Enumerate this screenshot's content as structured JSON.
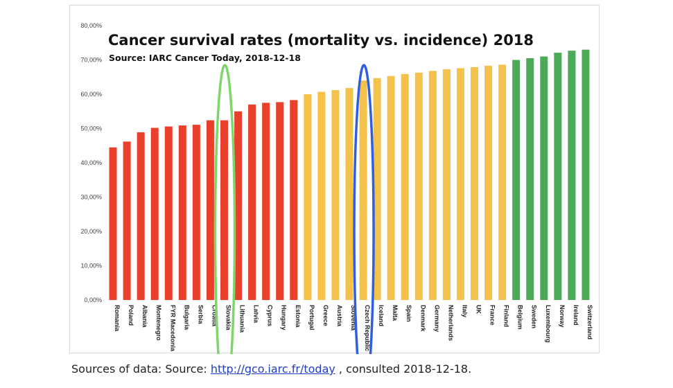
{
  "chart_data": {
    "type": "bar",
    "title": "Cancer survival rates (mortality vs. incidence) 2018",
    "subtitle": "Source: IARC Cancer Today, 2018-12-18",
    "xlabel": "",
    "ylabel": "",
    "ylim": [
      0,
      80
    ],
    "yticks": [
      "0,00%",
      "10,00%",
      "20,00%",
      "30,00%",
      "40,00%",
      "50,00%",
      "60,00%",
      "70,00%",
      "80,00%"
    ],
    "categories": [
      "Romania",
      "Poland",
      "Albania",
      "Montenegro",
      "FYR Macedonia",
      "Bulgaria",
      "Serbia",
      "Croatia",
      "Slovakia",
      "Lithuania",
      "Latvia",
      "Cyprus",
      "Hungary",
      "Estonia",
      "Portugal",
      "Greece",
      "Austria",
      "Slovenia",
      "Czech Republic",
      "Iceland",
      "Malta",
      "Spain",
      "Denmark",
      "Germany",
      "Netherlands",
      "Italy",
      "UK",
      "France",
      "Finland",
      "Belgium",
      "Sweden",
      "Luxembourg",
      "Norway",
      "Ireland",
      "Switzerland"
    ],
    "values": [
      44.5,
      46.2,
      48.9,
      50.2,
      50.6,
      50.9,
      51.1,
      52.4,
      52.4,
      55.0,
      57.0,
      57.5,
      57.7,
      58.3,
      60.0,
      60.7,
      61.2,
      61.8,
      64.0,
      64.7,
      65.3,
      65.9,
      66.3,
      66.8,
      67.3,
      67.6,
      67.9,
      68.3,
      68.6,
      70.0,
      70.5,
      71.0,
      72.1,
      72.7,
      73.0
    ],
    "colors": [
      "#e8402b",
      "#e8402b",
      "#e8402b",
      "#e8402b",
      "#e8402b",
      "#e8402b",
      "#e8402b",
      "#e8402b",
      "#e8402b",
      "#e8402b",
      "#e8402b",
      "#e8402b",
      "#e8402b",
      "#e8402b",
      "#f4c24a",
      "#f4c24a",
      "#f4c24a",
      "#f4c24a",
      "#f4c24a",
      "#f4c24a",
      "#f4c24a",
      "#f4c24a",
      "#f4c24a",
      "#f4c24a",
      "#f4c24a",
      "#f4c24a",
      "#f4c24a",
      "#f4c24a",
      "#f4c24a",
      "#4aaa55",
      "#4aaa55",
      "#4aaa55",
      "#4aaa55",
      "#4aaa55",
      "#4aaa55"
    ],
    "highlights": [
      {
        "category": "Slovakia",
        "color": "#7ed66b"
      },
      {
        "category": "Czech Republic",
        "color": "#2f5fe0"
      }
    ],
    "grid": false,
    "legend": "none"
  },
  "footer": {
    "prefix": "Sources of data: Source: ",
    "link_text": "http://gco.iarc.fr/today",
    "suffix": " , consulted 2018-12-18."
  }
}
